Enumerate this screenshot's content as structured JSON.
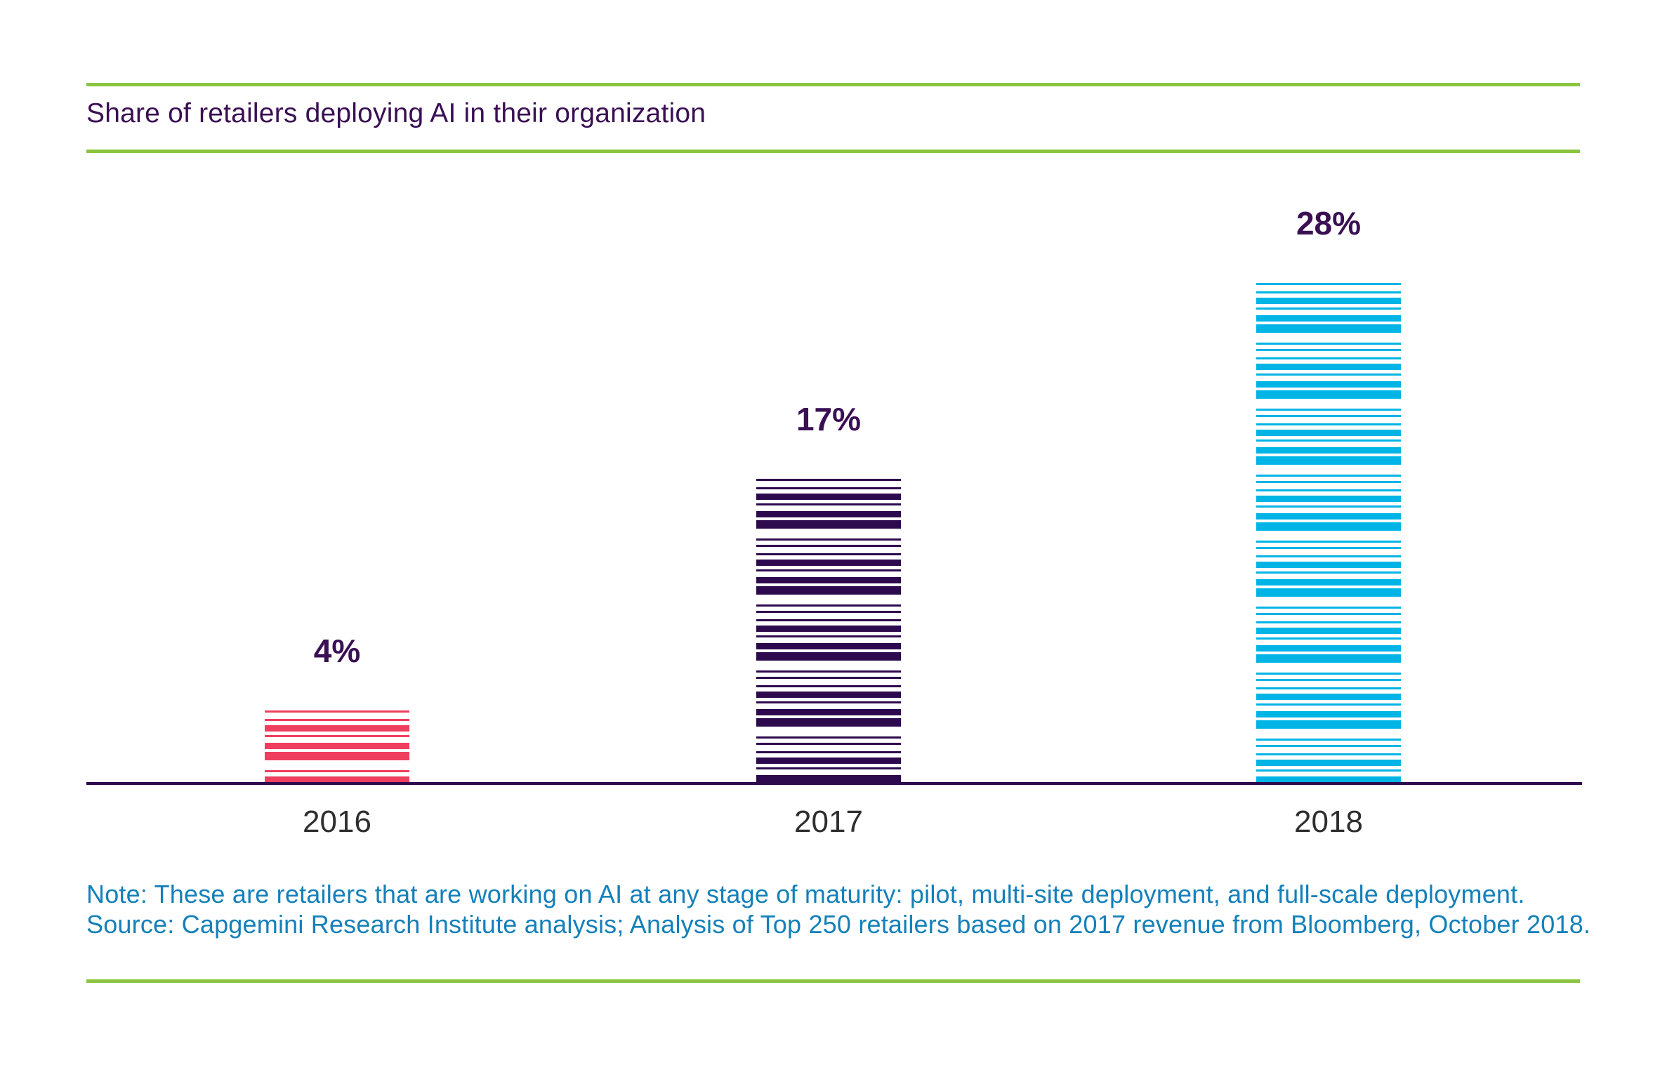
{
  "header": {
    "title": "Share of retailers deploying AI in their organization"
  },
  "chart_data": {
    "type": "bar",
    "title": "Share of retailers deploying AI in their organization",
    "categories": [
      "2016",
      "2017",
      "2018"
    ],
    "values": [
      4,
      17,
      28
    ],
    "value_labels": [
      "4%",
      "17%",
      "28%"
    ],
    "series_colors": [
      "#ef3e5e",
      "#2d0a4d",
      "#00b4e5"
    ],
    "unit": "%",
    "ylim": [
      0,
      30
    ],
    "grid": false,
    "legend": "none",
    "bar_style": "horizontal-striped"
  },
  "footer": {
    "note": "Note: These are retailers that are working on AI at any stage of maturity: pilot, multi-site deployment, and full-scale deployment.",
    "source": "Source: Capgemini Research Institute analysis; Analysis of Top 250 retailers based on 2017 revenue from Bloomberg, October 2018."
  },
  "colors": {
    "rule_green": "#8bc53f",
    "title_purple": "#3a0f53",
    "value_label_purple": "#3a0f53",
    "axis_line_purple": "#2d0a4d",
    "tick_label_gray": "#2e2e2e",
    "note_blue": "#1480ba",
    "bar_2016_pink": "#ef3e5e",
    "bar_2017_purple": "#2d0a4d",
    "bar_2018_cyan": "#00b4e5"
  }
}
